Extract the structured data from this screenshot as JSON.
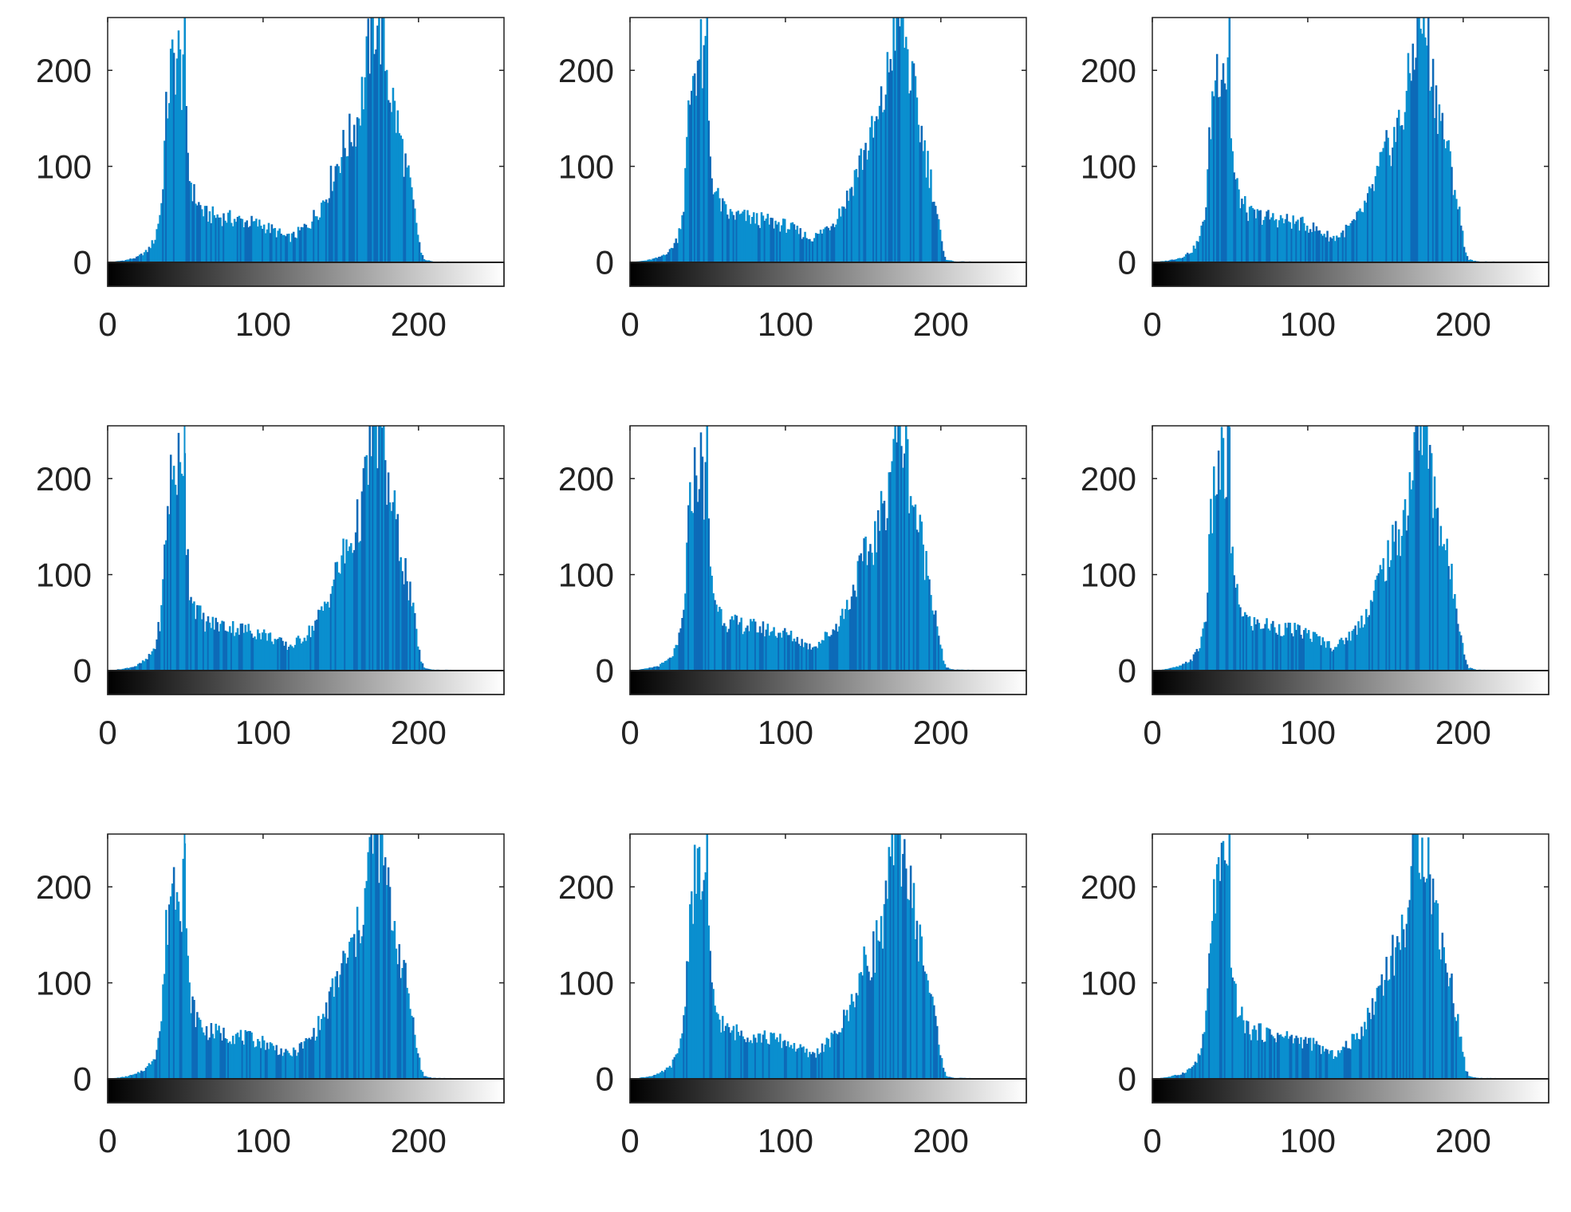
{
  "chart_data": {
    "type": "bar",
    "layout": {
      "rows": 3,
      "cols": 3
    },
    "bar_color": "#0a8fcf",
    "bar_color_dark": "#0d6ab8",
    "axis_color": "#222222",
    "colorbar": {
      "from": "#000000",
      "to": "#ffffff"
    },
    "xlim": [
      0,
      255
    ],
    "ylim": [
      0,
      255
    ],
    "xticks": [
      0,
      100,
      200
    ],
    "yticks": [
      0,
      100,
      200
    ],
    "bins": 256,
    "panels": [
      {
        "shift": 0,
        "peak1": 49,
        "peak2": 171,
        "height_scale": 1.0
      },
      {
        "shift": 0,
        "peak1": 49,
        "peak2": 171,
        "height_scale": 1.0
      },
      {
        "shift": 0,
        "peak1": 49,
        "peak2": 171,
        "height_scale": 1.0
      },
      {
        "shift": 0,
        "peak1": 49,
        "peak2": 171,
        "height_scale": 1.0
      },
      {
        "shift": 0,
        "peak1": 49,
        "peak2": 171,
        "height_scale": 1.0
      },
      {
        "shift": 0,
        "peak1": 49,
        "peak2": 171,
        "height_scale": 1.0
      },
      {
        "shift": 0,
        "peak1": 49,
        "peak2": 171,
        "height_scale": 1.0
      },
      {
        "shift": 0,
        "peak1": 49,
        "peak2": 171,
        "height_scale": 1.0
      },
      {
        "shift": 0,
        "peak1": 49,
        "peak2": 171,
        "height_scale": 1.0
      }
    ],
    "profile_points": [
      [
        0,
        0
      ],
      [
        10,
        2
      ],
      [
        18,
        5
      ],
      [
        25,
        12
      ],
      [
        30,
        25
      ],
      [
        34,
        60
      ],
      [
        37,
        150
      ],
      [
        40,
        200
      ],
      [
        43,
        210
      ],
      [
        45,
        215
      ],
      [
        47,
        190
      ],
      [
        49,
        255
      ],
      [
        50,
        140
      ],
      [
        52,
        90
      ],
      [
        55,
        70
      ],
      [
        58,
        60
      ],
      [
        62,
        50
      ],
      [
        70,
        48
      ],
      [
        80,
        45
      ],
      [
        90,
        42
      ],
      [
        100,
        38
      ],
      [
        110,
        30
      ],
      [
        115,
        25
      ],
      [
        120,
        28
      ],
      [
        125,
        35
      ],
      [
        130,
        42
      ],
      [
        135,
        55
      ],
      [
        140,
        70
      ],
      [
        145,
        95
      ],
      [
        150,
        115
      ],
      [
        155,
        130
      ],
      [
        160,
        150
      ],
      [
        165,
        190
      ],
      [
        168,
        230
      ],
      [
        170,
        255
      ],
      [
        173,
        255
      ],
      [
        176,
        240
      ],
      [
        180,
        190
      ],
      [
        185,
        150
      ],
      [
        190,
        110
      ],
      [
        195,
        70
      ],
      [
        198,
        40
      ],
      [
        201,
        10
      ],
      [
        203,
        3
      ],
      [
        208,
        1
      ],
      [
        255,
        0
      ]
    ]
  }
}
